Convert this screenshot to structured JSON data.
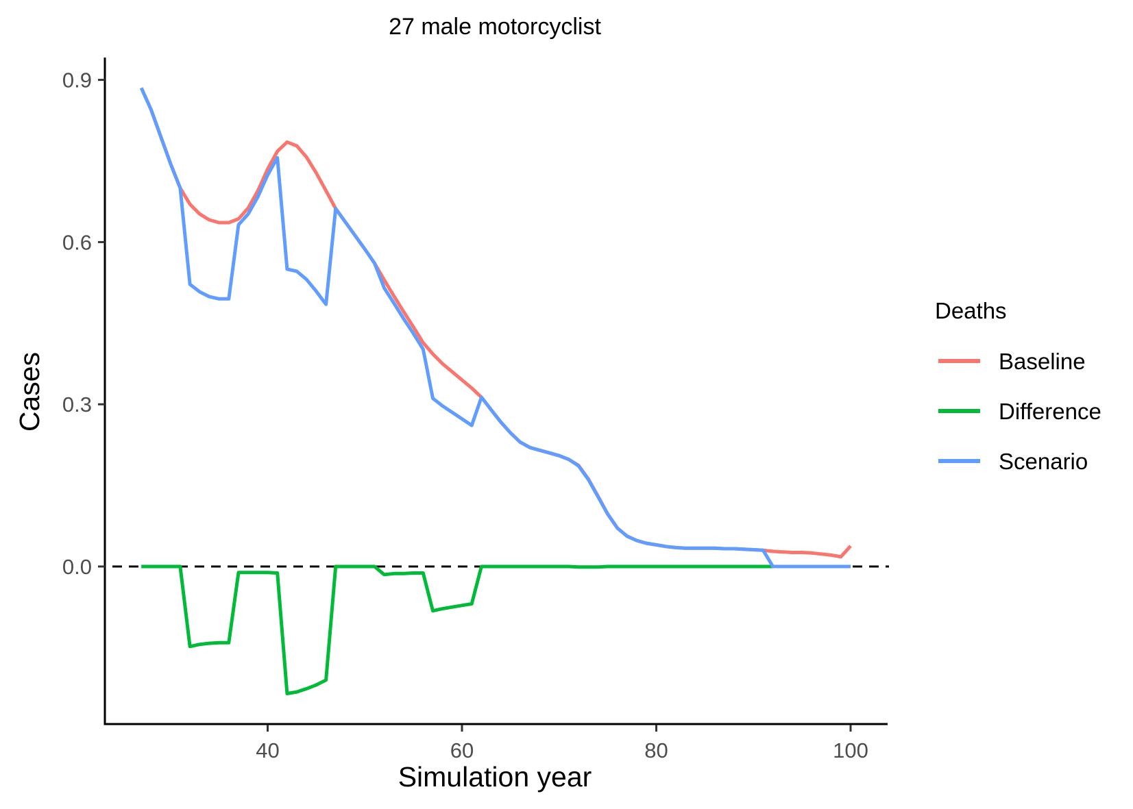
{
  "chart_data": {
    "type": "line",
    "title": "27 male motorcyclist",
    "xlabel": "Simulation year",
    "ylabel": "Cases",
    "xlim": [
      23,
      104
    ],
    "ylim": [
      -0.325,
      0.945
    ],
    "xticks": [
      40,
      60,
      80,
      100
    ],
    "yticks": [
      0.0,
      0.3,
      0.6,
      0.9
    ],
    "ytick_labels": [
      "0.0",
      "0.3",
      "0.6",
      "0.9"
    ],
    "grid": false,
    "reference_line": {
      "y": 0.0,
      "style": "dashed",
      "color": "#000000"
    },
    "legend": {
      "title": "Deaths",
      "position": "right"
    },
    "x": [
      27,
      28,
      29,
      30,
      31,
      32,
      33,
      34,
      35,
      36,
      37,
      38,
      39,
      40,
      41,
      42,
      43,
      44,
      45,
      46,
      47,
      48,
      49,
      50,
      51,
      52,
      53,
      54,
      55,
      56,
      57,
      58,
      59,
      60,
      61,
      62,
      63,
      64,
      65,
      66,
      67,
      68,
      69,
      70,
      71,
      72,
      73,
      74,
      75,
      76,
      77,
      78,
      79,
      80,
      81,
      82,
      83,
      84,
      85,
      86,
      87,
      88,
      89,
      90,
      91,
      92,
      93,
      94,
      95,
      96,
      97,
      98,
      99,
      100
    ],
    "series": [
      {
        "name": "Baseline",
        "color": "#F8766D",
        "values": [
          0.885,
          0.845,
          0.795,
          0.745,
          0.7,
          0.67,
          0.652,
          0.641,
          0.636,
          0.636,
          0.643,
          0.663,
          0.695,
          0.735,
          0.768,
          0.785,
          0.778,
          0.757,
          0.728,
          0.695,
          0.662,
          0.637,
          0.612,
          0.587,
          0.561,
          0.53,
          0.5,
          0.471,
          0.443,
          0.414,
          0.393,
          0.375,
          0.36,
          0.345,
          0.33,
          0.313,
          0.29,
          0.267,
          0.247,
          0.23,
          0.22,
          0.215,
          0.21,
          0.205,
          0.198,
          0.187,
          0.162,
          0.13,
          0.097,
          0.071,
          0.056,
          0.048,
          0.043,
          0.04,
          0.037,
          0.035,
          0.034,
          0.034,
          0.034,
          0.034,
          0.033,
          0.033,
          0.032,
          0.031,
          0.03,
          0.028,
          0.027,
          0.026,
          0.026,
          0.025,
          0.023,
          0.021,
          0.018,
          0.038
        ]
      },
      {
        "name": "Difference",
        "color": "#00BA38",
        "values": [
          0.0,
          0.0,
          0.0,
          0.0,
          0.0,
          -0.148,
          -0.144,
          -0.142,
          -0.141,
          -0.141,
          -0.011,
          -0.011,
          -0.011,
          -0.011,
          -0.012,
          -0.235,
          -0.232,
          -0.226,
          -0.219,
          -0.21,
          0.0,
          0.0,
          0.0,
          0.0,
          0.0,
          -0.015,
          -0.013,
          -0.013,
          -0.012,
          -0.012,
          -0.082,
          -0.078,
          -0.075,
          -0.072,
          -0.069,
          0.0,
          0.0,
          0.0,
          0.0,
          0.0,
          0.0,
          0.0,
          0.0,
          0.0,
          0.0,
          -0.001,
          -0.001,
          -0.001,
          0.0,
          0.0,
          0.0,
          0.0,
          0.0,
          0.0,
          0.0,
          0.0,
          0.0,
          0.0,
          0.0,
          0.0,
          0.0,
          0.0,
          0.0,
          0.0,
          0.0,
          0.0,
          0.0,
          0.0,
          0.0,
          0.0,
          0.0,
          0.0,
          0.0,
          0.0
        ]
      },
      {
        "name": "Scenario",
        "color": "#619CFF",
        "values": [
          0.885,
          0.845,
          0.795,
          0.745,
          0.7,
          0.522,
          0.508,
          0.499,
          0.495,
          0.495,
          0.632,
          0.652,
          0.684,
          0.724,
          0.756,
          0.55,
          0.546,
          0.531,
          0.509,
          0.485,
          0.662,
          0.637,
          0.612,
          0.587,
          0.561,
          0.515,
          0.487,
          0.458,
          0.431,
          0.402,
          0.311,
          0.297,
          0.285,
          0.273,
          0.261,
          0.313,
          0.29,
          0.267,
          0.247,
          0.23,
          0.22,
          0.215,
          0.21,
          0.205,
          0.198,
          0.186,
          0.161,
          0.129,
          0.097,
          0.071,
          0.056,
          0.048,
          0.043,
          0.04,
          0.037,
          0.035,
          0.034,
          0.034,
          0.034,
          0.034,
          0.033,
          0.033,
          0.032,
          0.031,
          0.03,
          0.0,
          0.0,
          0.0,
          0.0,
          0.0,
          0.0,
          0.0,
          0.0,
          0.0
        ]
      }
    ]
  }
}
